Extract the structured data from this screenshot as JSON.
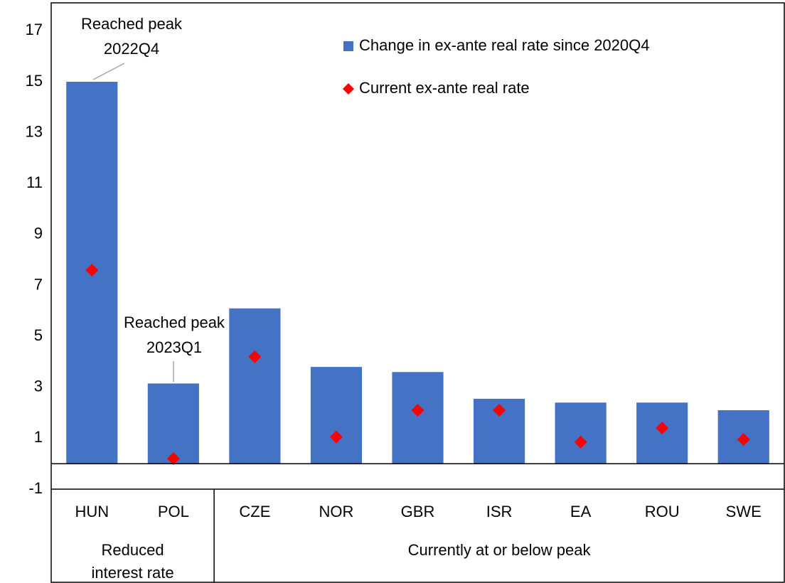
{
  "chart_data": {
    "type": "bar",
    "groups": [
      {
        "label": [
          "Reduced",
          "interest rate"
        ],
        "categories": [
          "HUN",
          "POL"
        ]
      },
      {
        "label": [
          "Currently at or below peak"
        ],
        "categories": [
          "CZE",
          "NOR",
          "GBR",
          "ISR",
          "EA",
          "ROU",
          "SWE"
        ]
      }
    ],
    "series": [
      {
        "name": "Change in ex-ante real rate since 2020Q4",
        "color": "#4472c4",
        "marker": "bar",
        "values": [
          15,
          3.15,
          6.1,
          3.8,
          3.6,
          2.55,
          2.4,
          2.4,
          2.1
        ]
      },
      {
        "name": "Current ex-ante real rate",
        "color": "#ff0000",
        "marker": "diamond",
        "values": [
          7.6,
          0.2,
          4.2,
          1.05,
          2.1,
          2.1,
          0.85,
          1.4,
          0.95
        ]
      }
    ],
    "annotations": [
      {
        "text": [
          "Reached peak",
          "2022Q4"
        ]
      },
      {
        "text": [
          "Reached peak",
          "2023Q1"
        ]
      }
    ],
    "ylim": [
      -1,
      18.1
    ],
    "yticks": [
      -1,
      1,
      3,
      5,
      7,
      9,
      11,
      13,
      15,
      17
    ],
    "grid": false,
    "legend": "top-right"
  }
}
